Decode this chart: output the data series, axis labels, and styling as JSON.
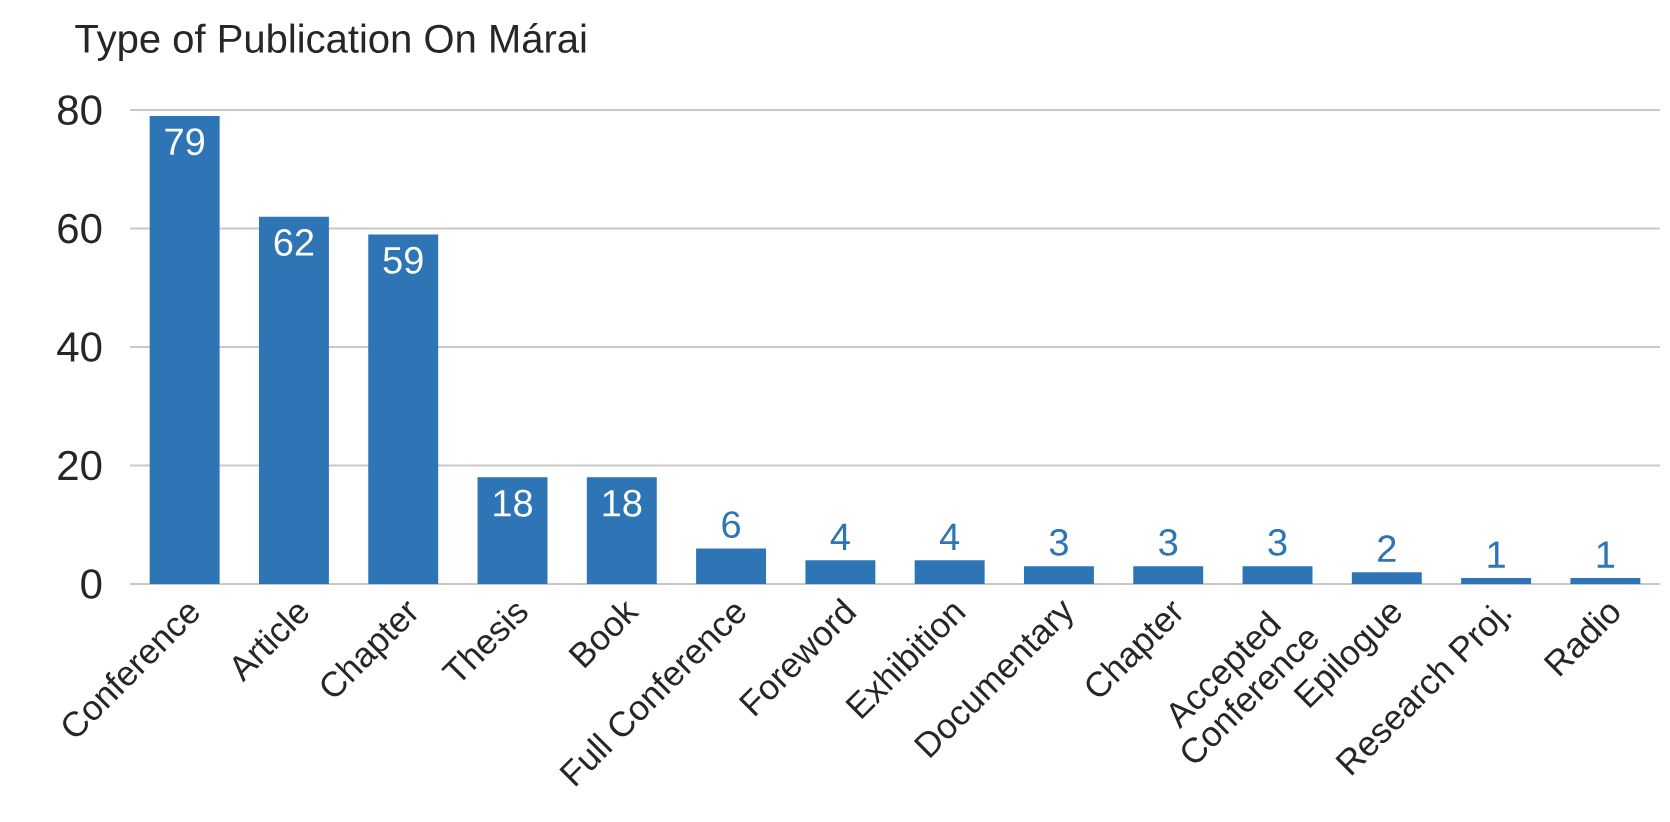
{
  "chart_data": {
    "type": "bar",
    "title": "Type of Publication On Márai",
    "categories": [
      "Conference",
      "Article",
      "Chapter",
      "Thesis",
      "Book",
      "Full Conference",
      "Foreword",
      "Exhibition",
      "Documentary",
      "Chapter",
      "Accepted Conference",
      "Epilogue",
      "Research Proj.",
      "Radio"
    ],
    "values": [
      79,
      62,
      59,
      18,
      18,
      6,
      4,
      4,
      3,
      3,
      3,
      2,
      1,
      1
    ],
    "color": "#2e75b6",
    "ylim": [
      0,
      80
    ],
    "yticks": [
      0,
      20,
      40,
      60,
      80
    ],
    "grid": "y",
    "data_labels": true
  }
}
